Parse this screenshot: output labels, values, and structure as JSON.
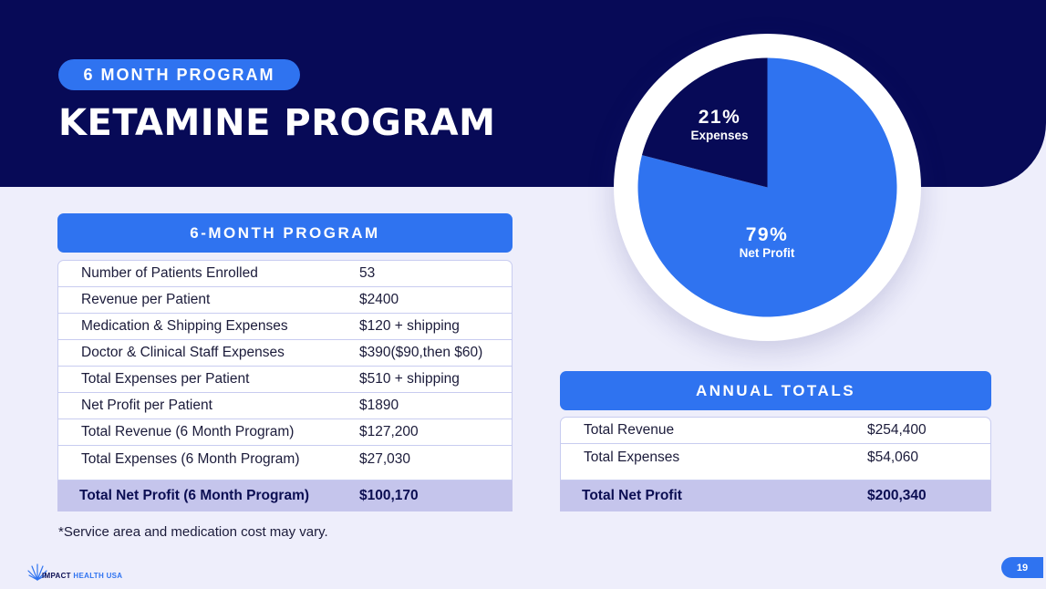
{
  "header": {
    "pill": "6 MONTH PROGRAM",
    "title": "KETAMINE PROGRAM"
  },
  "left_table": {
    "heading": "6-MONTH PROGRAM",
    "rows": [
      {
        "label": "Number of Patients Enrolled",
        "value": "53"
      },
      {
        "label": "Revenue per Patient",
        "value": "$2400"
      },
      {
        "label": "Medication & Shipping Expenses",
        "value": "$120 + shipping"
      },
      {
        "label": "Doctor & Clinical Staff Expenses",
        "value": "$390($90,then $60)"
      },
      {
        "label": "Total Expenses per Patient",
        "value": "$510 + shipping"
      },
      {
        "label": "Net Profit per Patient",
        "value": "$1890"
      },
      {
        "label": "Total Revenue (6 Month Program)",
        "value": "$127,200"
      },
      {
        "label": "Total Expenses (6 Month Program)",
        "value": "$27,030"
      }
    ],
    "total": {
      "label": "Total Net Profit (6 Month Program)",
      "value": "$100,170"
    }
  },
  "right_table": {
    "heading": "ANNUAL TOTALS",
    "rows": [
      {
        "label": "Total Revenue",
        "value": "$254,400"
      },
      {
        "label": "Total Expenses",
        "value": "$54,060"
      }
    ],
    "total": {
      "label": "Total Net Profit",
      "value": "$200,340"
    }
  },
  "chart_data": {
    "type": "pie",
    "slices": [
      {
        "label": "Net Profit",
        "percent_label": "79%",
        "value": 79,
        "color": "#2f73f0"
      },
      {
        "label": "Expenses",
        "percent_label": "21%",
        "value": 21,
        "color": "#070a57"
      }
    ]
  },
  "footnote": "*Service area and medication cost may vary.",
  "logo": {
    "part1": "IMPACT",
    "part2": "HEALTH USA"
  },
  "page_number": "19",
  "colors": {
    "navy": "#070a57",
    "accent": "#2f73f0",
    "page_bg": "#eeeefb",
    "total_row": "#c5c5ec"
  }
}
